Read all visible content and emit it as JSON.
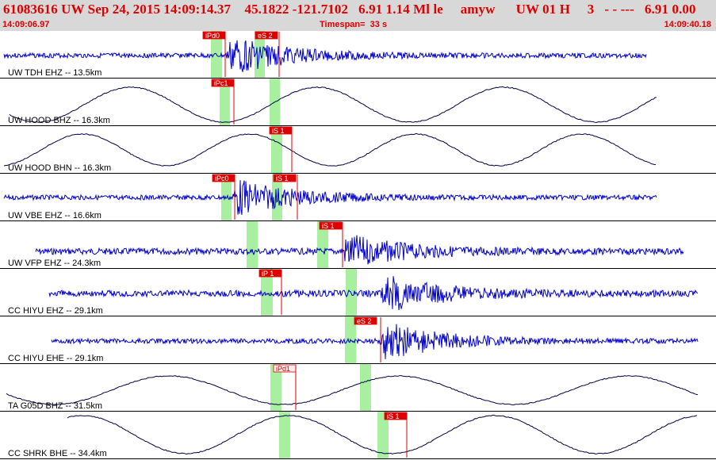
{
  "header": {
    "title": "61083616 UW Sep 24, 2015 14:09:14.37    45.1822 -121.7102   6.91 1.14 Ml le     amyw      UW 01 H     3   - - ---   6.91 0.00",
    "start_time": "14:09:06.97",
    "timespan": "Timespan=  33 s",
    "end_time": "14:09:40.18"
  },
  "colors": {
    "header_bg": "#d8d8d8",
    "header_text": "#dd0000",
    "trace_hf": "#0000cc",
    "trace_lf": "#000044",
    "pick": "#dd0000",
    "pick_window": "#a8f0a0"
  },
  "traces": [
    {
      "label": "UW TDH EHZ -- 13.5km",
      "type": "hf",
      "picks": [
        "iPd0",
        "eS 2"
      ]
    },
    {
      "label": "UW HOOD BHZ -- 16.3km",
      "type": "lf",
      "picks": [
        "iPc1"
      ]
    },
    {
      "label": "UW HOOD BHN -- 16.3km",
      "type": "lf",
      "picks": [
        "iS 1"
      ]
    },
    {
      "label": "UW VBE EHZ -- 16.6km",
      "type": "hf",
      "picks": [
        "iPc0",
        "iS 1"
      ]
    },
    {
      "label": "UW VFP EHZ -- 24.3km",
      "type": "hf",
      "picks": [
        "iS 1"
      ]
    },
    {
      "label": "CC HIYU EHZ -- 29.1km",
      "type": "hf",
      "picks": [
        "iP 1"
      ]
    },
    {
      "label": "CC HIYU EHE -- 29.1km",
      "type": "hf",
      "picks": [
        "eS 2"
      ]
    },
    {
      "label": "TA G05D BHZ -- 31.5km",
      "type": "lf",
      "picks": [
        "iPd1"
      ]
    },
    {
      "label": "CC SHRK BHE -- 34.4km",
      "type": "lf",
      "picks": [
        "iS 1"
      ]
    }
  ]
}
